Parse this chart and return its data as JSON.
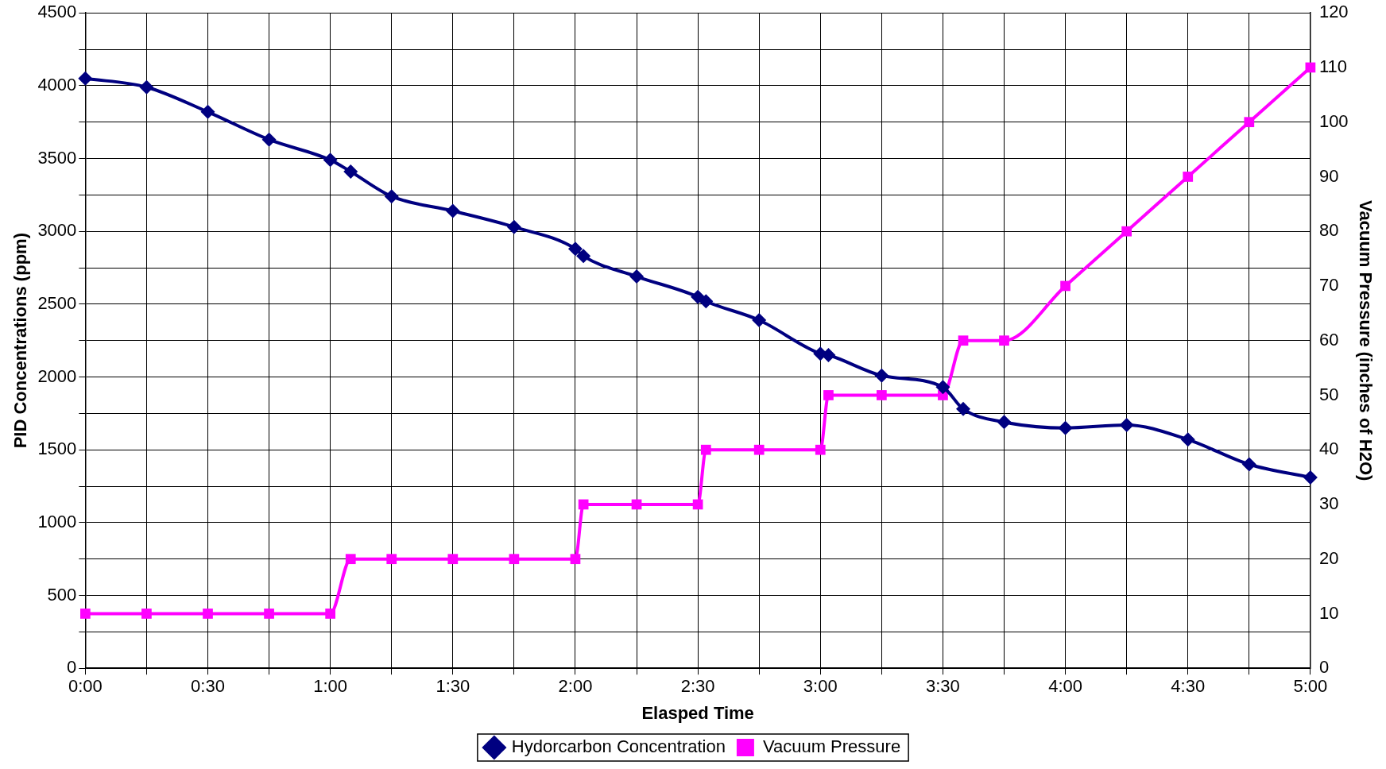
{
  "chart_data": {
    "type": "line",
    "xlabel": "Elasped Time",
    "ylabel": "PID Concentrations (ppm)",
    "y2label": "Vacuum Pressure (inches of H2O)",
    "xlim": [
      0,
      5
    ],
    "xticks": [
      {
        "value": 0,
        "label": "0:00"
      },
      {
        "value": 0.25,
        "label": null
      },
      {
        "value": 0.5,
        "label": "0:30"
      },
      {
        "value": 0.75,
        "label": null
      },
      {
        "value": 1,
        "label": "1:00"
      },
      {
        "value": 1.25,
        "label": null
      },
      {
        "value": 1.5,
        "label": "1:30"
      },
      {
        "value": 1.75,
        "label": null
      },
      {
        "value": 2,
        "label": "2:00"
      },
      {
        "value": 2.25,
        "label": null
      },
      {
        "value": 2.5,
        "label": "2:30"
      },
      {
        "value": 2.75,
        "label": null
      },
      {
        "value": 3,
        "label": "3:00"
      },
      {
        "value": 3.25,
        "label": null
      },
      {
        "value": 3.5,
        "label": "3:30"
      },
      {
        "value": 3.75,
        "label": null
      },
      {
        "value": 4,
        "label": "4:00"
      },
      {
        "value": 4.25,
        "label": null
      },
      {
        "value": 4.5,
        "label": "4:30"
      },
      {
        "value": 4.75,
        "label": null
      },
      {
        "value": 5,
        "label": "5:00"
      }
    ],
    "ylim": [
      0,
      4500
    ],
    "yticks": [
      0,
      {
        "value": 250,
        "label": null
      },
      500,
      {
        "value": 750,
        "label": null
      },
      1000,
      {
        "value": 1250,
        "label": null
      },
      1500,
      {
        "value": 1750,
        "label": null
      },
      2000,
      {
        "value": 2250,
        "label": null
      },
      2500,
      {
        "value": 2750,
        "label": null
      },
      3000,
      {
        "value": 3250,
        "label": null
      },
      3500,
      {
        "value": 3750,
        "label": null
      },
      4000,
      {
        "value": 4250,
        "label": null
      },
      4500
    ],
    "y2lim": [
      0,
      120
    ],
    "y2ticks": [
      0,
      10,
      20,
      30,
      40,
      50,
      60,
      70,
      80,
      90,
      100,
      110,
      120
    ],
    "grid": true,
    "legend": "bottom",
    "line_style": "solid",
    "series": [
      {
        "name": "Hydorcarbon Concentration",
        "color": "#000080",
        "marker": "diamond",
        "x": [
          0,
          0.25,
          0.5,
          0.75,
          1,
          1.083,
          1.25,
          1.5,
          1.75,
          2,
          2.033,
          2.25,
          2.5,
          2.533,
          2.75,
          3,
          3.033,
          3.25,
          3.5,
          3.583,
          3.75,
          4,
          4.25,
          4.5,
          4.75,
          5
        ],
        "values": [
          4050,
          3990,
          3820,
          3630,
          3490,
          3410,
          3240,
          3140,
          3030,
          2880,
          2830,
          2690,
          2550,
          2520,
          2390,
          2160,
          2150,
          2010,
          1930,
          1780,
          1690,
          1650,
          1670,
          1570,
          1400,
          1310
        ]
      },
      {
        "name": "Vacuum Pressure",
        "color": "#ff00ff",
        "marker": "square",
        "axis": "y2",
        "x": [
          0,
          0.25,
          0.5,
          0.75,
          1,
          1.083,
          1.25,
          1.5,
          1.75,
          2,
          2.033,
          2.25,
          2.5,
          2.533,
          2.75,
          3,
          3.033,
          3.25,
          3.5,
          3.583,
          3.75,
          4,
          4.25,
          4.5,
          4.75,
          5
        ],
        "values": [
          10,
          10,
          10,
          10,
          10,
          20,
          20,
          20,
          20,
          20,
          30,
          30,
          30,
          40,
          40,
          40,
          50,
          50,
          50,
          60,
          60,
          70,
          80,
          90,
          100,
          110
        ]
      }
    ]
  }
}
